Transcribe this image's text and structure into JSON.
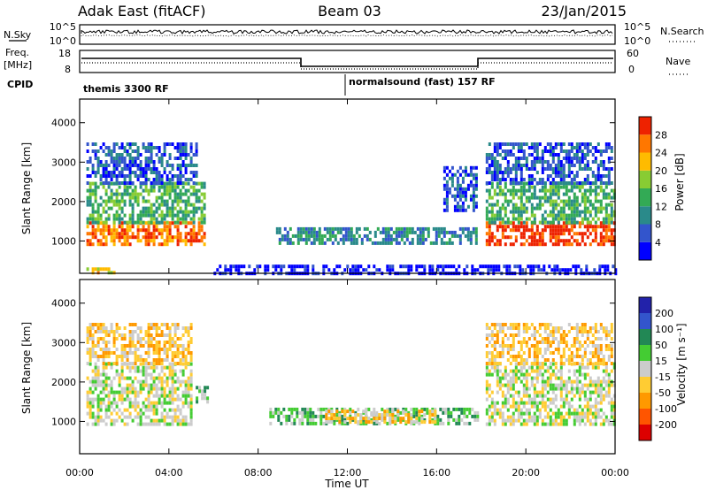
{
  "header": {
    "station": "Adak East (fitACF)",
    "beam": "Beam 03",
    "date": "23/Jan/2015"
  },
  "noise_panel": {
    "left_label": "N.Sky",
    "right_label": "N.Search",
    "y_ticks_left": [
      "10^5",
      "10^0"
    ],
    "y_ticks_right": [
      "10^5",
      "10^0"
    ]
  },
  "freq_panel": {
    "left_label_1": "Freq.",
    "left_label_2": "[MHz]",
    "right_label": "Nave",
    "y_ticks_left": [
      "18",
      "8"
    ],
    "y_ticks_right": [
      "60",
      "0"
    ]
  },
  "cpid": {
    "label": "CPID",
    "segment_1": "themis 3300 RF",
    "segment_2": "normalsound (fast) 157 RF"
  },
  "chart_data": [
    {
      "type": "heatmap",
      "quantity": "Power",
      "ylabel": "Slant Range [km]",
      "colorbar_label": "Power [dB]",
      "colorbar_ticks": [
        "4",
        "8",
        "12",
        "16",
        "20",
        "24",
        "28"
      ],
      "colorbar_colors": [
        "#0000ff",
        "#3355cc",
        "#2a8a8a",
        "#33aa55",
        "#88cc33",
        "#ffbb00",
        "#ff7700",
        "#ee2200"
      ],
      "y_ticks": [
        "1000",
        "2000",
        "3000",
        "4000"
      ],
      "ylim": [
        180,
        4600
      ],
      "xlim_hours": [
        0,
        24
      ],
      "echo_regions": [
        {
          "t0": 0.3,
          "t1": 5.6,
          "r0": 900,
          "r1": 1500,
          "level": 6
        },
        {
          "t0": 0.3,
          "t1": 5.6,
          "r0": 1500,
          "r1": 2500,
          "level": 3
        },
        {
          "t0": 0.3,
          "t1": 5.2,
          "r0": 2500,
          "r1": 3500,
          "level": 1
        },
        {
          "t0": 0.3,
          "t1": 1.5,
          "r0": 200,
          "r1": 330,
          "level": 5
        },
        {
          "t0": 8.8,
          "t1": 17.8,
          "r0": 950,
          "r1": 1350,
          "level": 2
        },
        {
          "t0": 16.3,
          "t1": 17.8,
          "r0": 1800,
          "r1": 2900,
          "level": 1
        },
        {
          "t0": 18.2,
          "t1": 24.0,
          "r0": 900,
          "r1": 1500,
          "level": 7
        },
        {
          "t0": 18.2,
          "t1": 24.0,
          "r0": 1500,
          "r1": 2500,
          "level": 3
        },
        {
          "t0": 18.2,
          "t1": 23.8,
          "r0": 2500,
          "r1": 3500,
          "level": 1
        },
        {
          "t0": 6.0,
          "t1": 24.0,
          "r0": 180,
          "r1": 400,
          "level": 0
        }
      ]
    },
    {
      "type": "heatmap",
      "quantity": "Velocity",
      "ylabel": "Slant Range [km]",
      "colorbar_label": "Velocity [m s⁻¹]",
      "colorbar_ticks": [
        "-200",
        "-100",
        "-50",
        "-15",
        "15",
        "50",
        "100",
        "200"
      ],
      "colorbar_colors": [
        "#dd0000",
        "#ff5500",
        "#ff9900",
        "#ffcc33",
        "#cccccc",
        "#44cc33",
        "#228855",
        "#3355cc",
        "#2222aa"
      ],
      "y_ticks": [
        "1000",
        "2000",
        "3000",
        "4000"
      ],
      "ylim": [
        180,
        4600
      ],
      "xlim_hours": [
        0,
        24
      ],
      "x_ticks": [
        "00:00",
        "04:00",
        "08:00",
        "12:00",
        "16:00",
        "20:00",
        "00:00"
      ],
      "xlabel": "Time UT",
      "echo_regions": [
        {
          "t0": 0.3,
          "t1": 5.0,
          "r0": 900,
          "r1": 2500,
          "level": 4
        },
        {
          "t0": 0.3,
          "t1": 5.0,
          "r0": 2500,
          "r1": 3500,
          "level": 3
        },
        {
          "t0": 5.2,
          "t1": 5.7,
          "r0": 1500,
          "r1": 1900,
          "level": 5
        },
        {
          "t0": 8.5,
          "t1": 17.8,
          "r0": 950,
          "r1": 1350,
          "level": 5
        },
        {
          "t0": 11.0,
          "t1": 16.0,
          "r0": 1000,
          "r1": 1300,
          "level": 3
        },
        {
          "t0": 18.2,
          "t1": 24.0,
          "r0": 900,
          "r1": 2500,
          "level": 4
        },
        {
          "t0": 18.2,
          "t1": 23.8,
          "r0": 2500,
          "r1": 3500,
          "level": 3
        }
      ]
    }
  ]
}
